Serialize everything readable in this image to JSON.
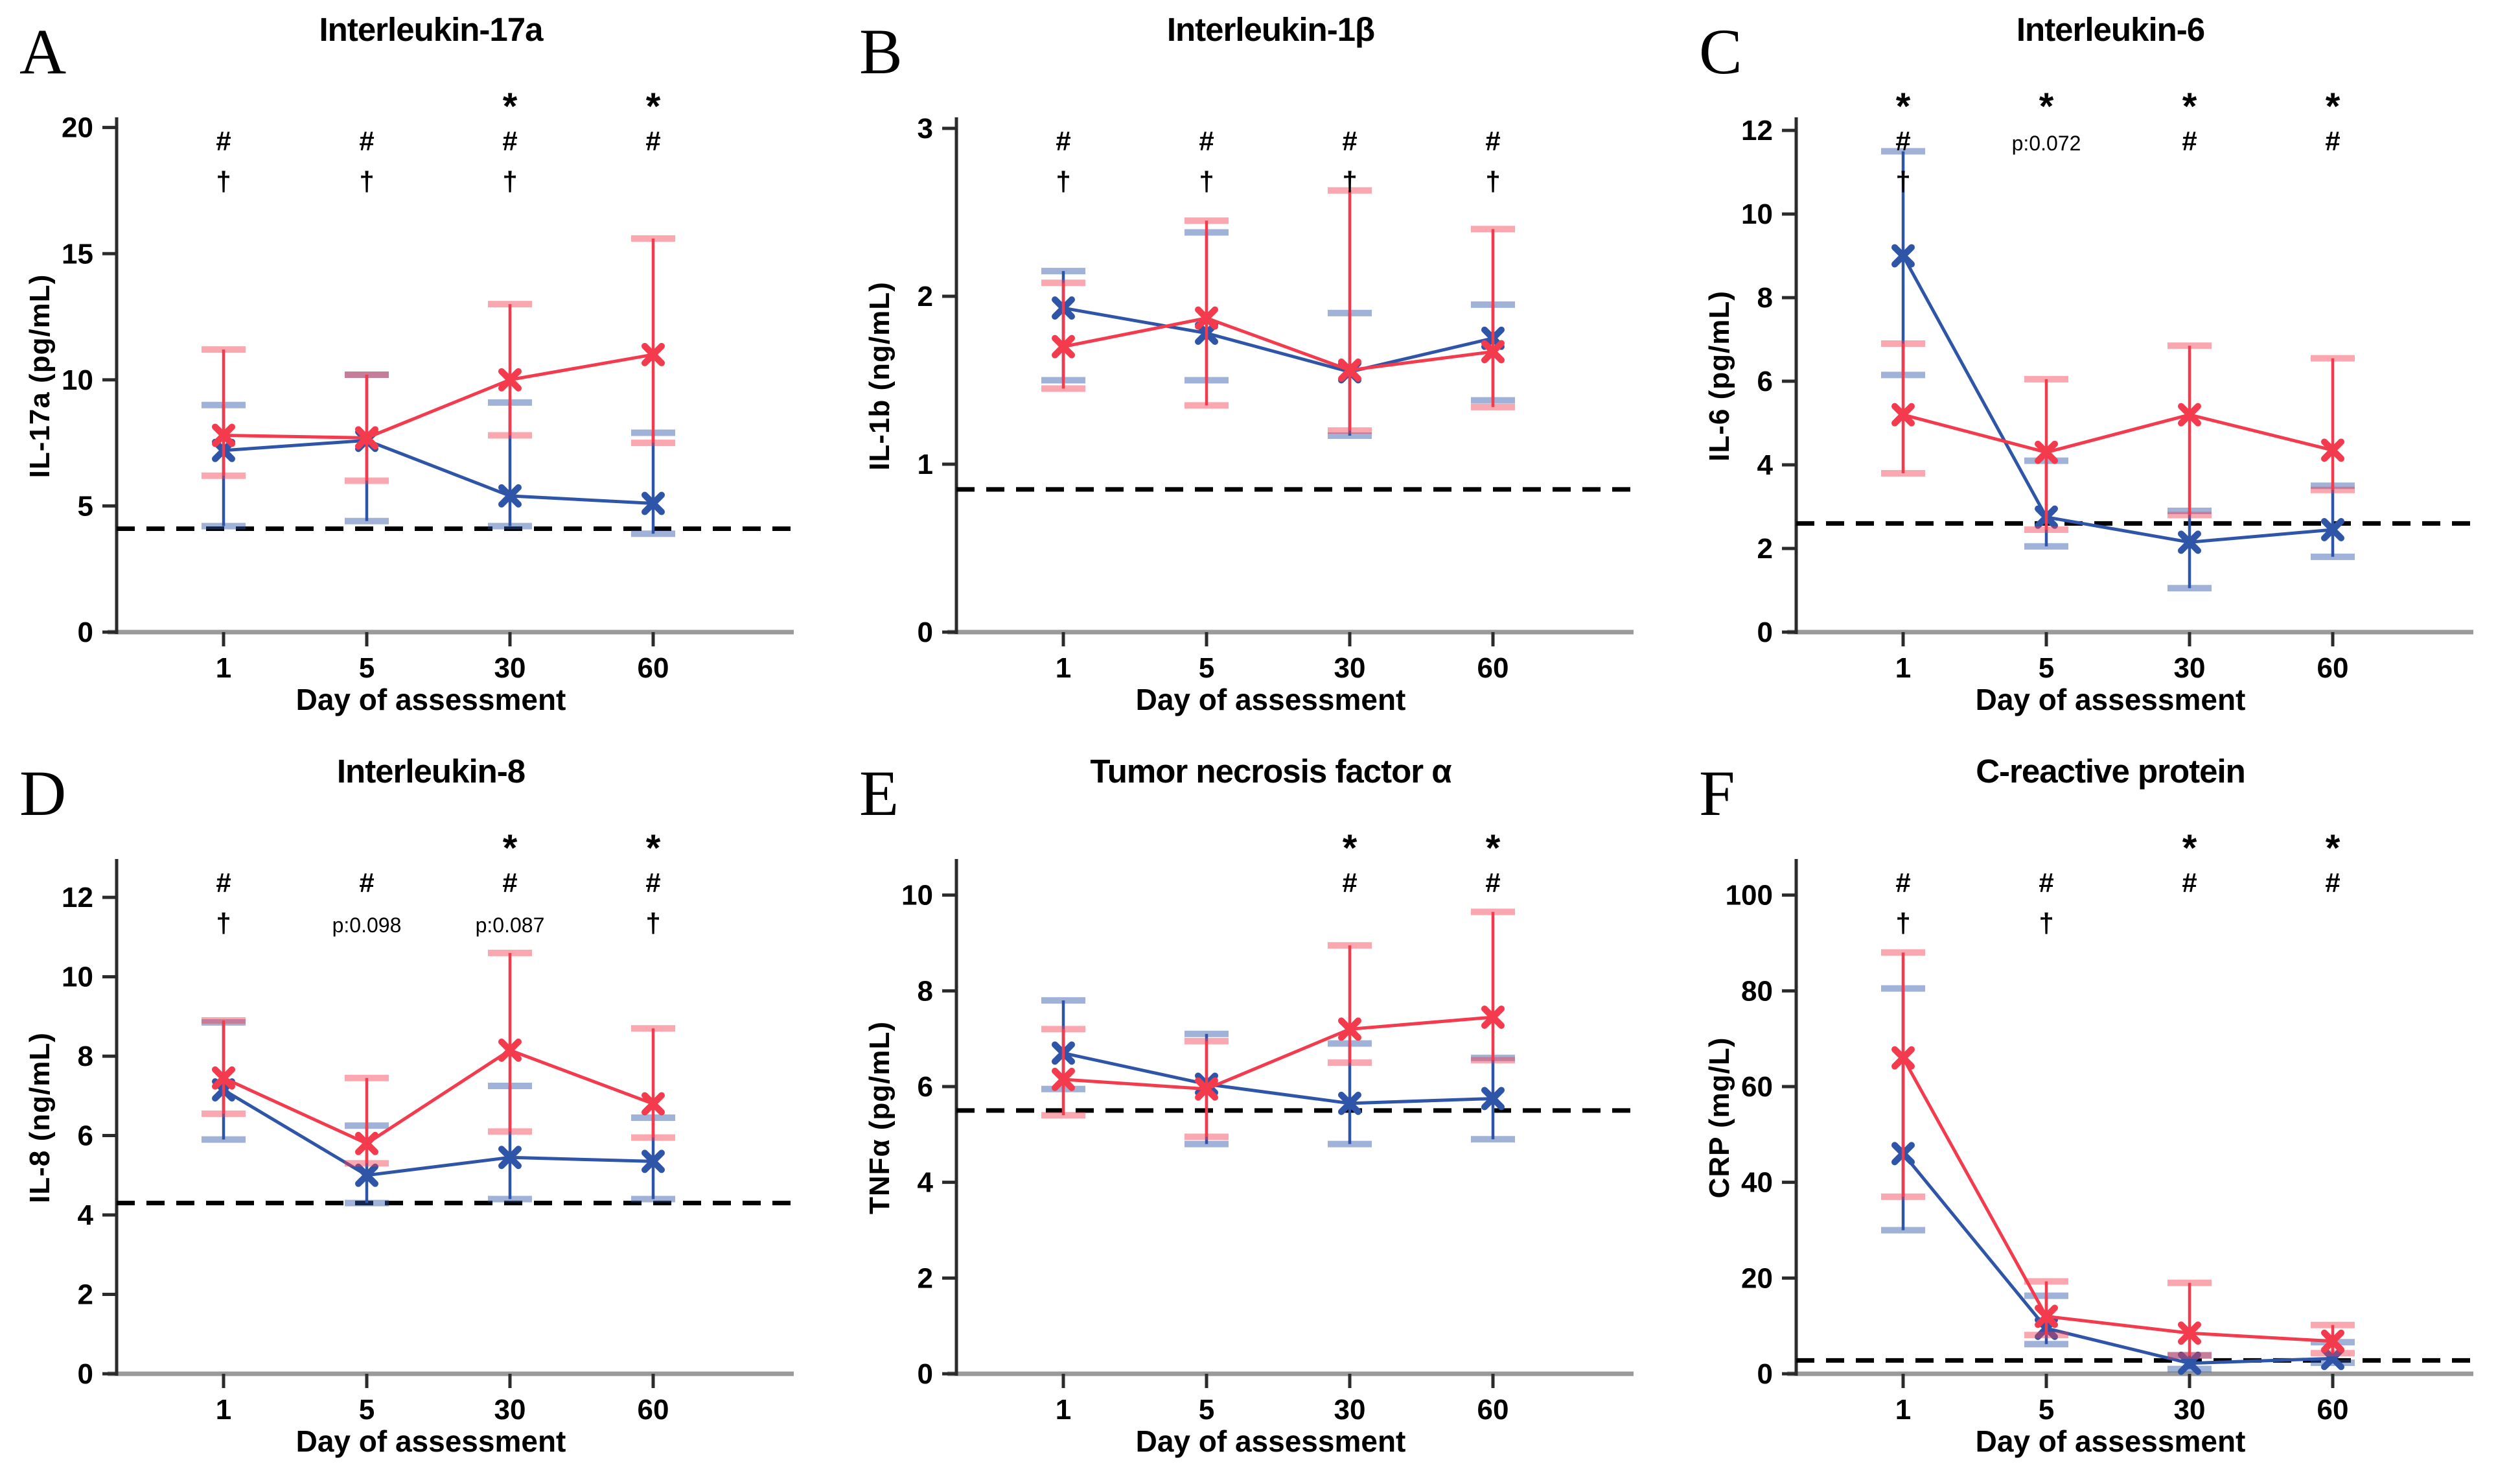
{
  "figure": {
    "xlabel_shared": "Day of assessment",
    "categories_shared": [
      "1",
      "5",
      "30",
      "60"
    ],
    "annotation_symbols": [
      "*",
      "#",
      "†"
    ],
    "colors": {
      "series_red": "#f43b4d",
      "series_red_cap": "rgba(244,59,77,0.45)",
      "series_blue": "#2f55a8",
      "series_blue_cap": "rgba(47,85,168,0.45)",
      "reference_line": "#000000",
      "axis_left": "#2b2b2b",
      "axis_bottom": "#9a9a9a"
    }
  },
  "chart_data": [
    {
      "panel": "A",
      "type": "line",
      "title": "Interleukin-17a",
      "ylabel": "IL-17a (pg/mL)",
      "xlabel": "Day of assessment",
      "categories": [
        "1",
        "5",
        "30",
        "60"
      ],
      "yticks": [
        0,
        5,
        10,
        15,
        20
      ],
      "ylim": [
        0,
        20.3
      ],
      "reference_line": 4.1,
      "series": [
        {
          "name": "blue-group",
          "color": "#2f55a8",
          "cap_color": "rgba(47,85,168,0.45)",
          "values": [
            7.2,
            7.6,
            5.4,
            5.1
          ],
          "err_low": [
            4.2,
            4.4,
            4.2,
            3.9
          ],
          "err_high": [
            9.0,
            10.2,
            9.1,
            7.9
          ]
        },
        {
          "name": "red-group",
          "color": "#f43b4d",
          "cap_color": "rgba(244,59,77,0.45)",
          "values": [
            7.8,
            7.7,
            10.0,
            11.0
          ],
          "err_low": [
            6.2,
            6.0,
            7.8,
            7.5
          ],
          "err_high": [
            11.2,
            10.2,
            13.0,
            15.6
          ]
        }
      ],
      "annotations": [
        [
          "",
          "#",
          "†"
        ],
        [
          "",
          "#",
          "†"
        ],
        [
          "*",
          "#",
          "†"
        ],
        [
          "*",
          "#",
          ""
        ]
      ]
    },
    {
      "panel": "B",
      "type": "line",
      "title": "Interleukin-1β",
      "ylabel": "IL-1b (ng/mL)",
      "xlabel": "Day of assessment",
      "categories": [
        "1",
        "5",
        "30",
        "60"
      ],
      "yticks": [
        0,
        1,
        2,
        3
      ],
      "ylim": [
        0,
        3.05
      ],
      "reference_line": 0.85,
      "series": [
        {
          "name": "blue-group",
          "color": "#2f55a8",
          "cap_color": "rgba(47,85,168,0.45)",
          "values": [
            1.93,
            1.78,
            1.55,
            1.75
          ],
          "err_low": [
            1.5,
            1.5,
            1.17,
            1.38
          ],
          "err_high": [
            2.15,
            2.38,
            1.9,
            1.95
          ]
        },
        {
          "name": "red-group",
          "color": "#f43b4d",
          "cap_color": "rgba(244,59,77,0.45)",
          "values": [
            1.7,
            1.87,
            1.56,
            1.67
          ],
          "err_low": [
            1.45,
            1.35,
            1.2,
            1.34
          ],
          "err_high": [
            2.08,
            2.45,
            2.63,
            2.4
          ]
        }
      ],
      "annotations": [
        [
          "",
          "#",
          "†"
        ],
        [
          "",
          "#",
          "†"
        ],
        [
          "",
          "#",
          "†"
        ],
        [
          "",
          "#",
          "†"
        ]
      ]
    },
    {
      "panel": "C",
      "type": "line",
      "title": "Interleukin-6",
      "ylabel": "IL-6 (pg/mL)",
      "xlabel": "Day of assessment",
      "categories": [
        "1",
        "5",
        "30",
        "60"
      ],
      "yticks": [
        0,
        2,
        4,
        6,
        8,
        10,
        12
      ],
      "ylim": [
        0,
        12.25
      ],
      "reference_line": 2.6,
      "series": [
        {
          "name": "blue-group",
          "color": "#2f55a8",
          "cap_color": "rgba(47,85,168,0.45)",
          "values": [
            9.0,
            2.75,
            2.15,
            2.45
          ],
          "err_low": [
            6.15,
            2.05,
            1.05,
            1.8
          ],
          "err_high": [
            11.5,
            4.1,
            2.9,
            3.5
          ]
        },
        {
          "name": "red-group",
          "color": "#f43b4d",
          "cap_color": "rgba(244,59,77,0.45)",
          "values": [
            5.2,
            4.3,
            5.2,
            4.35
          ],
          "err_low": [
            3.8,
            2.45,
            2.8,
            3.4
          ],
          "err_high": [
            6.9,
            6.05,
            6.85,
            6.55
          ]
        }
      ],
      "annotations": [
        [
          "*",
          "#",
          "†"
        ],
        [
          "*",
          "p:0.072",
          ""
        ],
        [
          "*",
          "#",
          ""
        ],
        [
          "*",
          "#",
          ""
        ]
      ]
    },
    {
      "panel": "D",
      "type": "line",
      "title": "Interleukin-8",
      "ylabel": "IL-8 (ng/mL)",
      "xlabel": "Day of assessment",
      "categories": [
        "1",
        "5",
        "30",
        "60"
      ],
      "yticks": [
        0,
        2,
        4,
        6,
        8,
        10,
        12
      ],
      "ylim": [
        0,
        12.9
      ],
      "reference_line": 4.3,
      "series": [
        {
          "name": "blue-group",
          "color": "#2f55a8",
          "cap_color": "rgba(47,85,168,0.45)",
          "values": [
            7.15,
            5.0,
            5.45,
            5.35
          ],
          "err_low": [
            5.9,
            4.3,
            4.4,
            4.4
          ],
          "err_high": [
            8.85,
            6.25,
            7.25,
            6.45
          ]
        },
        {
          "name": "red-group",
          "color": "#f43b4d",
          "cap_color": "rgba(244,59,77,0.45)",
          "values": [
            7.45,
            5.8,
            8.15,
            6.8
          ],
          "err_low": [
            6.55,
            5.3,
            6.1,
            5.95
          ],
          "err_high": [
            8.9,
            7.45,
            10.6,
            8.7
          ]
        }
      ],
      "annotations": [
        [
          "",
          "#",
          "†"
        ],
        [
          "",
          "#",
          "p:0.098"
        ],
        [
          "*",
          "#",
          "p:0.087"
        ],
        [
          "*",
          "#",
          "†"
        ]
      ]
    },
    {
      "panel": "E",
      "type": "line",
      "title": "Tumor necrosis factor α",
      "ylabel": "TNFα (pg/mL)",
      "xlabel": "Day of assessment",
      "categories": [
        "1",
        "5",
        "30",
        "60"
      ],
      "yticks": [
        0,
        2,
        4,
        6,
        8,
        10
      ],
      "ylim": [
        0,
        10.7
      ],
      "reference_line": 5.5,
      "series": [
        {
          "name": "blue-group",
          "color": "#2f55a8",
          "cap_color": "rgba(47,85,168,0.45)",
          "values": [
            6.7,
            6.05,
            5.65,
            5.75
          ],
          "err_low": [
            5.95,
            4.8,
            4.8,
            4.9
          ],
          "err_high": [
            7.8,
            7.1,
            6.9,
            6.6
          ]
        },
        {
          "name": "red-group",
          "color": "#f43b4d",
          "cap_color": "rgba(244,59,77,0.45)",
          "values": [
            6.15,
            5.95,
            7.2,
            7.45
          ],
          "err_low": [
            5.4,
            4.95,
            6.5,
            6.55
          ],
          "err_high": [
            7.2,
            6.95,
            8.95,
            9.65
          ]
        }
      ],
      "annotations": [
        [
          "",
          "",
          ""
        ],
        [
          "",
          "",
          ""
        ],
        [
          "*",
          "#",
          ""
        ],
        [
          "*",
          "#",
          ""
        ]
      ]
    },
    {
      "panel": "F",
      "type": "line",
      "title": "C-reactive protein",
      "ylabel": "CRP (mg/L)",
      "xlabel": "Day of assessment",
      "categories": [
        "1",
        "5",
        "30",
        "60"
      ],
      "yticks": [
        0,
        20,
        40,
        60,
        80,
        100
      ],
      "ylim": [
        0,
        107
      ],
      "reference_line": 2.8,
      "series": [
        {
          "name": "blue-group",
          "color": "#2f55a8",
          "cap_color": "rgba(47,85,168,0.45)",
          "values": [
            46,
            9.5,
            2.2,
            3.2
          ],
          "err_low": [
            30,
            6.2,
            1.0,
            2.3
          ],
          "err_high": [
            80.5,
            16.3,
            3.9,
            6.6
          ]
        },
        {
          "name": "red-group",
          "color": "#f43b4d",
          "cap_color": "rgba(244,59,77,0.45)",
          "values": [
            66,
            12,
            8.5,
            6.8
          ],
          "err_low": [
            37,
            8.1,
            3.8,
            4.3
          ],
          "err_high": [
            88,
            19.3,
            19,
            10.2
          ]
        }
      ],
      "annotations": [
        [
          "",
          "#",
          "†"
        ],
        [
          "",
          "#",
          "†"
        ],
        [
          "*",
          "#",
          ""
        ],
        [
          "*",
          "#",
          ""
        ]
      ]
    }
  ]
}
